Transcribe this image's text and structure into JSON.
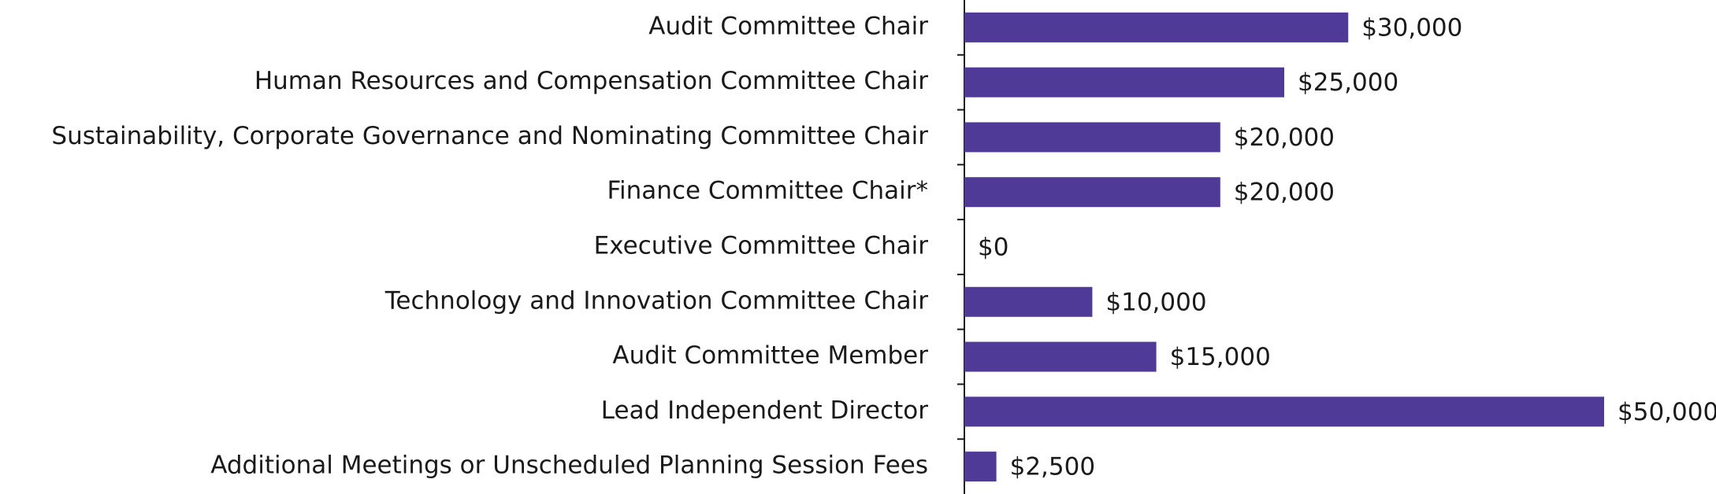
{
  "chart_data": {
    "type": "barh",
    "categories": [
      "Audit Committee Chair",
      "Human Resources and Compensation Committee Chair",
      "Sustainability, Corporate Governance and Nominating Committee Chair",
      "Finance Committee Chair*",
      "Executive Committee Chair",
      "Technology and Innovation Committee Chair",
      "Audit Committee Member",
      "Lead Independent Director",
      "Additional Meetings or Unscheduled Planning Session Fees"
    ],
    "values": [
      30000,
      25000,
      20000,
      20000,
      0,
      10000,
      15000,
      50000,
      2500
    ],
    "value_labels": [
      "$30,000",
      "$25,000",
      "$20,000",
      "$20,000",
      "$0",
      "$10,000",
      "$15,000",
      "$50,000",
      "$2,500"
    ],
    "color": "#4f3b97"
  }
}
